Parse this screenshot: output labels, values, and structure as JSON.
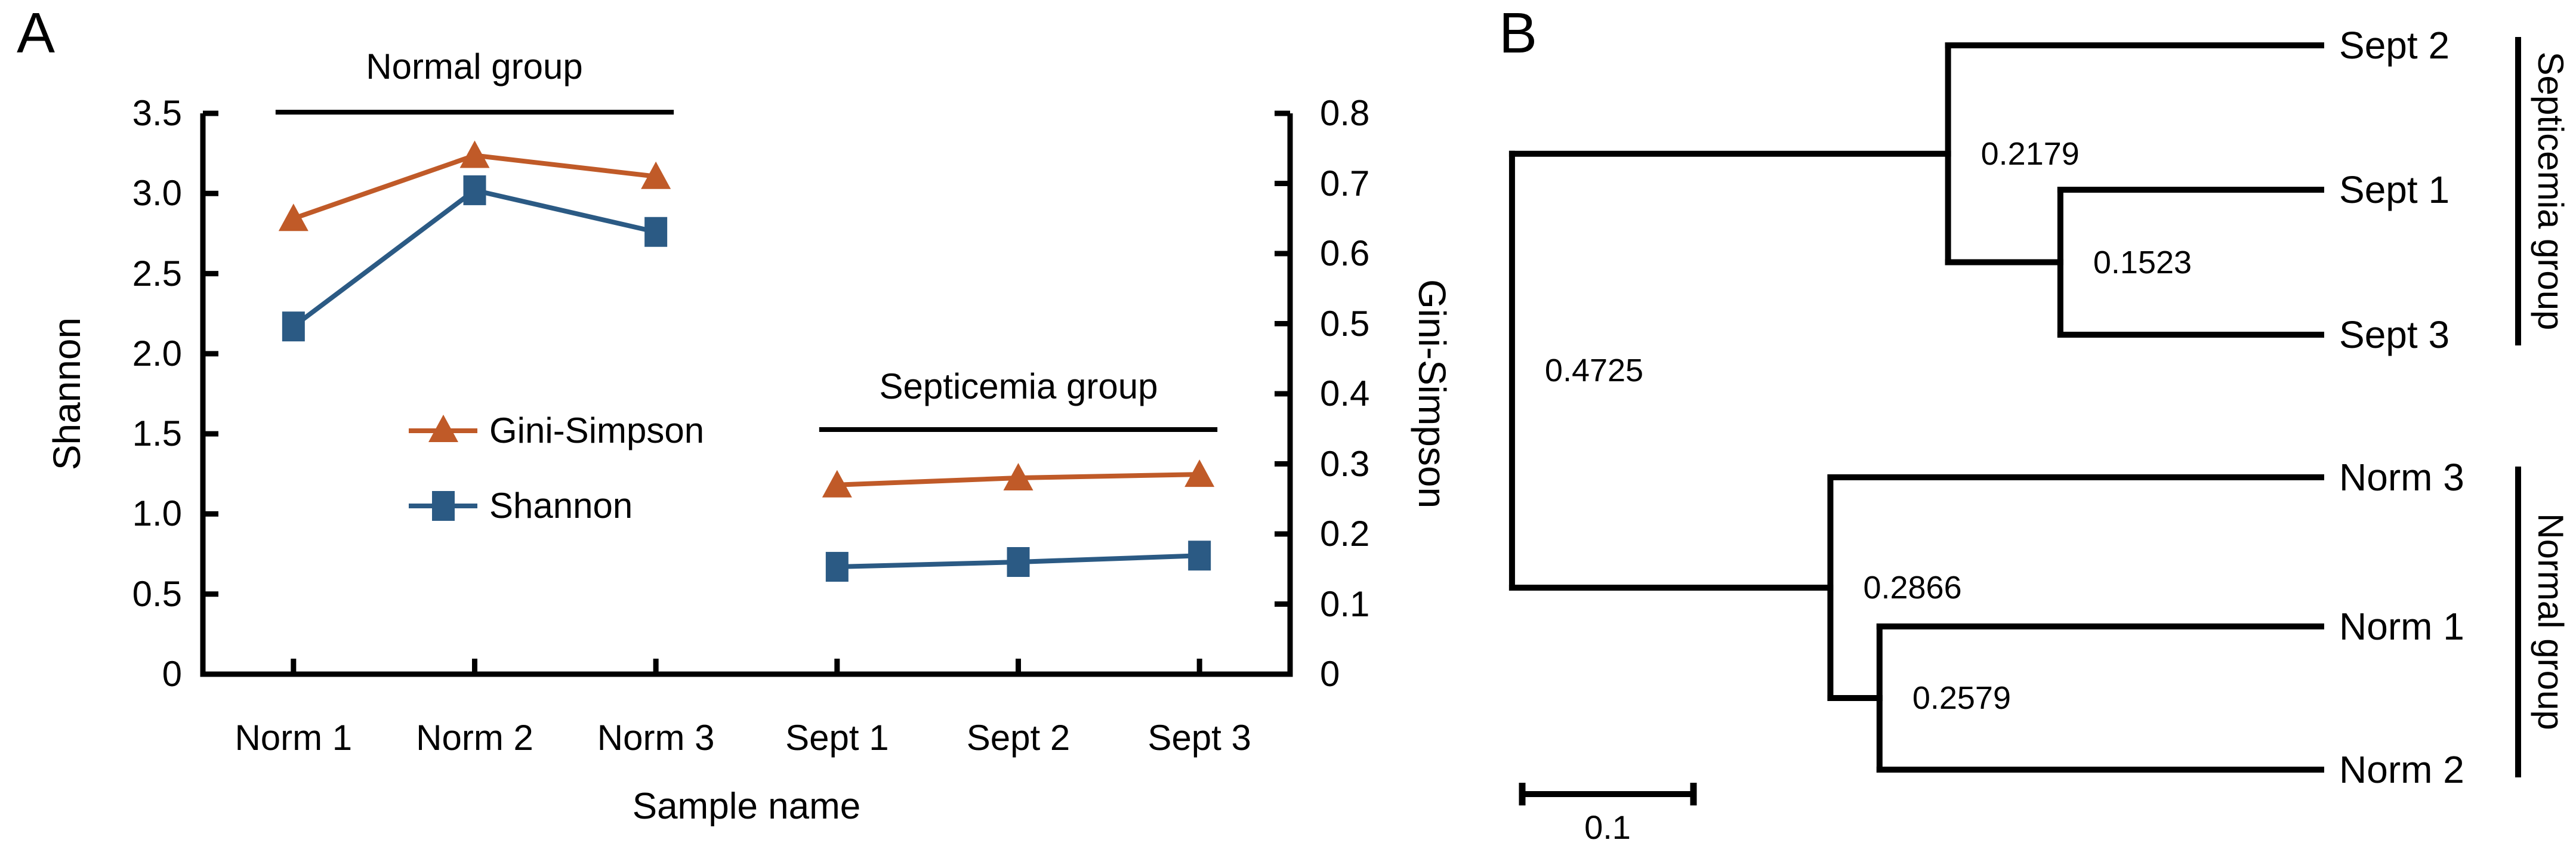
{
  "panel_a": {
    "panel_label": "A",
    "group_annotations": [
      {
        "label": "Normal group",
        "first_category": 0,
        "last_category": 2
      },
      {
        "label": "Septicemia group",
        "first_category": 3,
        "last_category": 5
      }
    ],
    "legend": [
      {
        "label": "Gini-Simpson",
        "marker": "triangle-icon",
        "color": "#C05A28"
      },
      {
        "label": "Shannon",
        "marker": "square-icon",
        "color": "#2B5A84"
      }
    ],
    "y_left_axis": {
      "title": "Shannon",
      "tick_labels": [
        "3.5",
        "3.0",
        "2.5",
        "2.0",
        "1.5",
        "1.0",
        "0.5",
        "0"
      ],
      "tick_values": [
        3.5,
        3.0,
        2.5,
        2.0,
        1.5,
        1.0,
        0.5,
        0
      ]
    },
    "y_right_axis": {
      "title": "Gini-Simpson",
      "tick_labels": [
        "0.8",
        "0.7",
        "0.6",
        "0.5",
        "0.4",
        "0.3",
        "0.2",
        "0.1",
        "0"
      ],
      "tick_values": [
        0.8,
        0.7,
        0.6,
        0.5,
        0.4,
        0.3,
        0.2,
        0.1,
        0
      ]
    },
    "x_axis": {
      "title": "Sample name",
      "categories": [
        "Norm 1",
        "Norm 2",
        "Norm 3",
        "Sept 1",
        "Sept 2",
        "Sept 3"
      ]
    }
  },
  "panel_b": {
    "panel_label": "B",
    "leaf_labels": [
      "Sept 2",
      "Sept 1",
      "Sept 3",
      "Norm 3",
      "Norm 1",
      "Norm 2"
    ],
    "node_values": [
      "0.4725",
      "0.2179",
      "0.1523",
      "0.2866",
      "0.2579"
    ],
    "groups": [
      {
        "label": "Septicemia group",
        "leaves": [
          "Sept 2",
          "Sept 1",
          "Sept 3"
        ]
      },
      {
        "label": "Normal group",
        "leaves": [
          "Norm 3",
          "Norm 1",
          "Norm 2"
        ]
      }
    ],
    "scale_bar": {
      "label": "0.1",
      "value": 0.1
    }
  },
  "chart_data": [
    {
      "type": "line",
      "title": "",
      "categories": [
        "Norm 1",
        "Norm 2",
        "Norm 3",
        "Sept 1",
        "Sept 2",
        "Sept 3"
      ],
      "xlabel": "Sample name",
      "ylabel_left": "Shannon",
      "ylabel_right": "Gini-Simpson",
      "ylim_left": [
        0,
        3.5
      ],
      "ylim_right": [
        0,
        0.8
      ],
      "grid": false,
      "legend_position": "inside-center-left",
      "series": [
        {
          "name": "Gini-Simpson",
          "axis": "right",
          "marker": "triangle",
          "color": "#C05A28",
          "values": [
            0.65,
            0.74,
            0.71,
            0.27,
            0.28,
            0.285
          ]
        },
        {
          "name": "Shannon",
          "axis": "left",
          "marker": "square",
          "color": "#2B5A84",
          "values": [
            2.17,
            3.02,
            2.76,
            0.67,
            0.7,
            0.74
          ]
        }
      ],
      "annotations": [
        {
          "text": "Normal group",
          "over_categories": [
            "Norm 1",
            "Norm 3"
          ]
        },
        {
          "text": "Septicemia group",
          "over_categories": [
            "Sept 1",
            "Sept 3"
          ]
        }
      ]
    },
    {
      "type": "tree",
      "orientation": "right-facing dendrogram, distance decreasing to the right",
      "leaves_top_to_bottom": [
        "Sept 2",
        "Sept 1",
        "Sept 3",
        "Norm 3",
        "Norm 1",
        "Norm 2"
      ],
      "scale_bar": 0.1,
      "tree": {
        "d": "0.4725",
        "children": [
          {
            "d": "0.2179",
            "children": [
              {
                "leaf": "Sept 2"
              },
              {
                "d": "0.1523",
                "children": [
                  {
                    "leaf": "Sept 1"
                  },
                  {
                    "leaf": "Sept 3"
                  }
                ]
              }
            ]
          },
          {
            "d": "0.2866",
            "children": [
              {
                "leaf": "Norm 3"
              },
              {
                "d": "0.2579",
                "children": [
                  {
                    "leaf": "Norm 1"
                  },
                  {
                    "leaf": "Norm 2"
                  }
                ]
              }
            ]
          }
        ]
      },
      "groups": [
        {
          "label": "Septicemia group",
          "leaves": [
            "Sept 2",
            "Sept 1",
            "Sept 3"
          ]
        },
        {
          "label": "Normal group",
          "leaves": [
            "Norm 3",
            "Norm 1",
            "Norm 2"
          ]
        }
      ]
    }
  ],
  "colors": {
    "orange_series": "#C05A28",
    "blue_series": "#2B5A84",
    "axis": "#000000",
    "background": "#ffffff"
  }
}
